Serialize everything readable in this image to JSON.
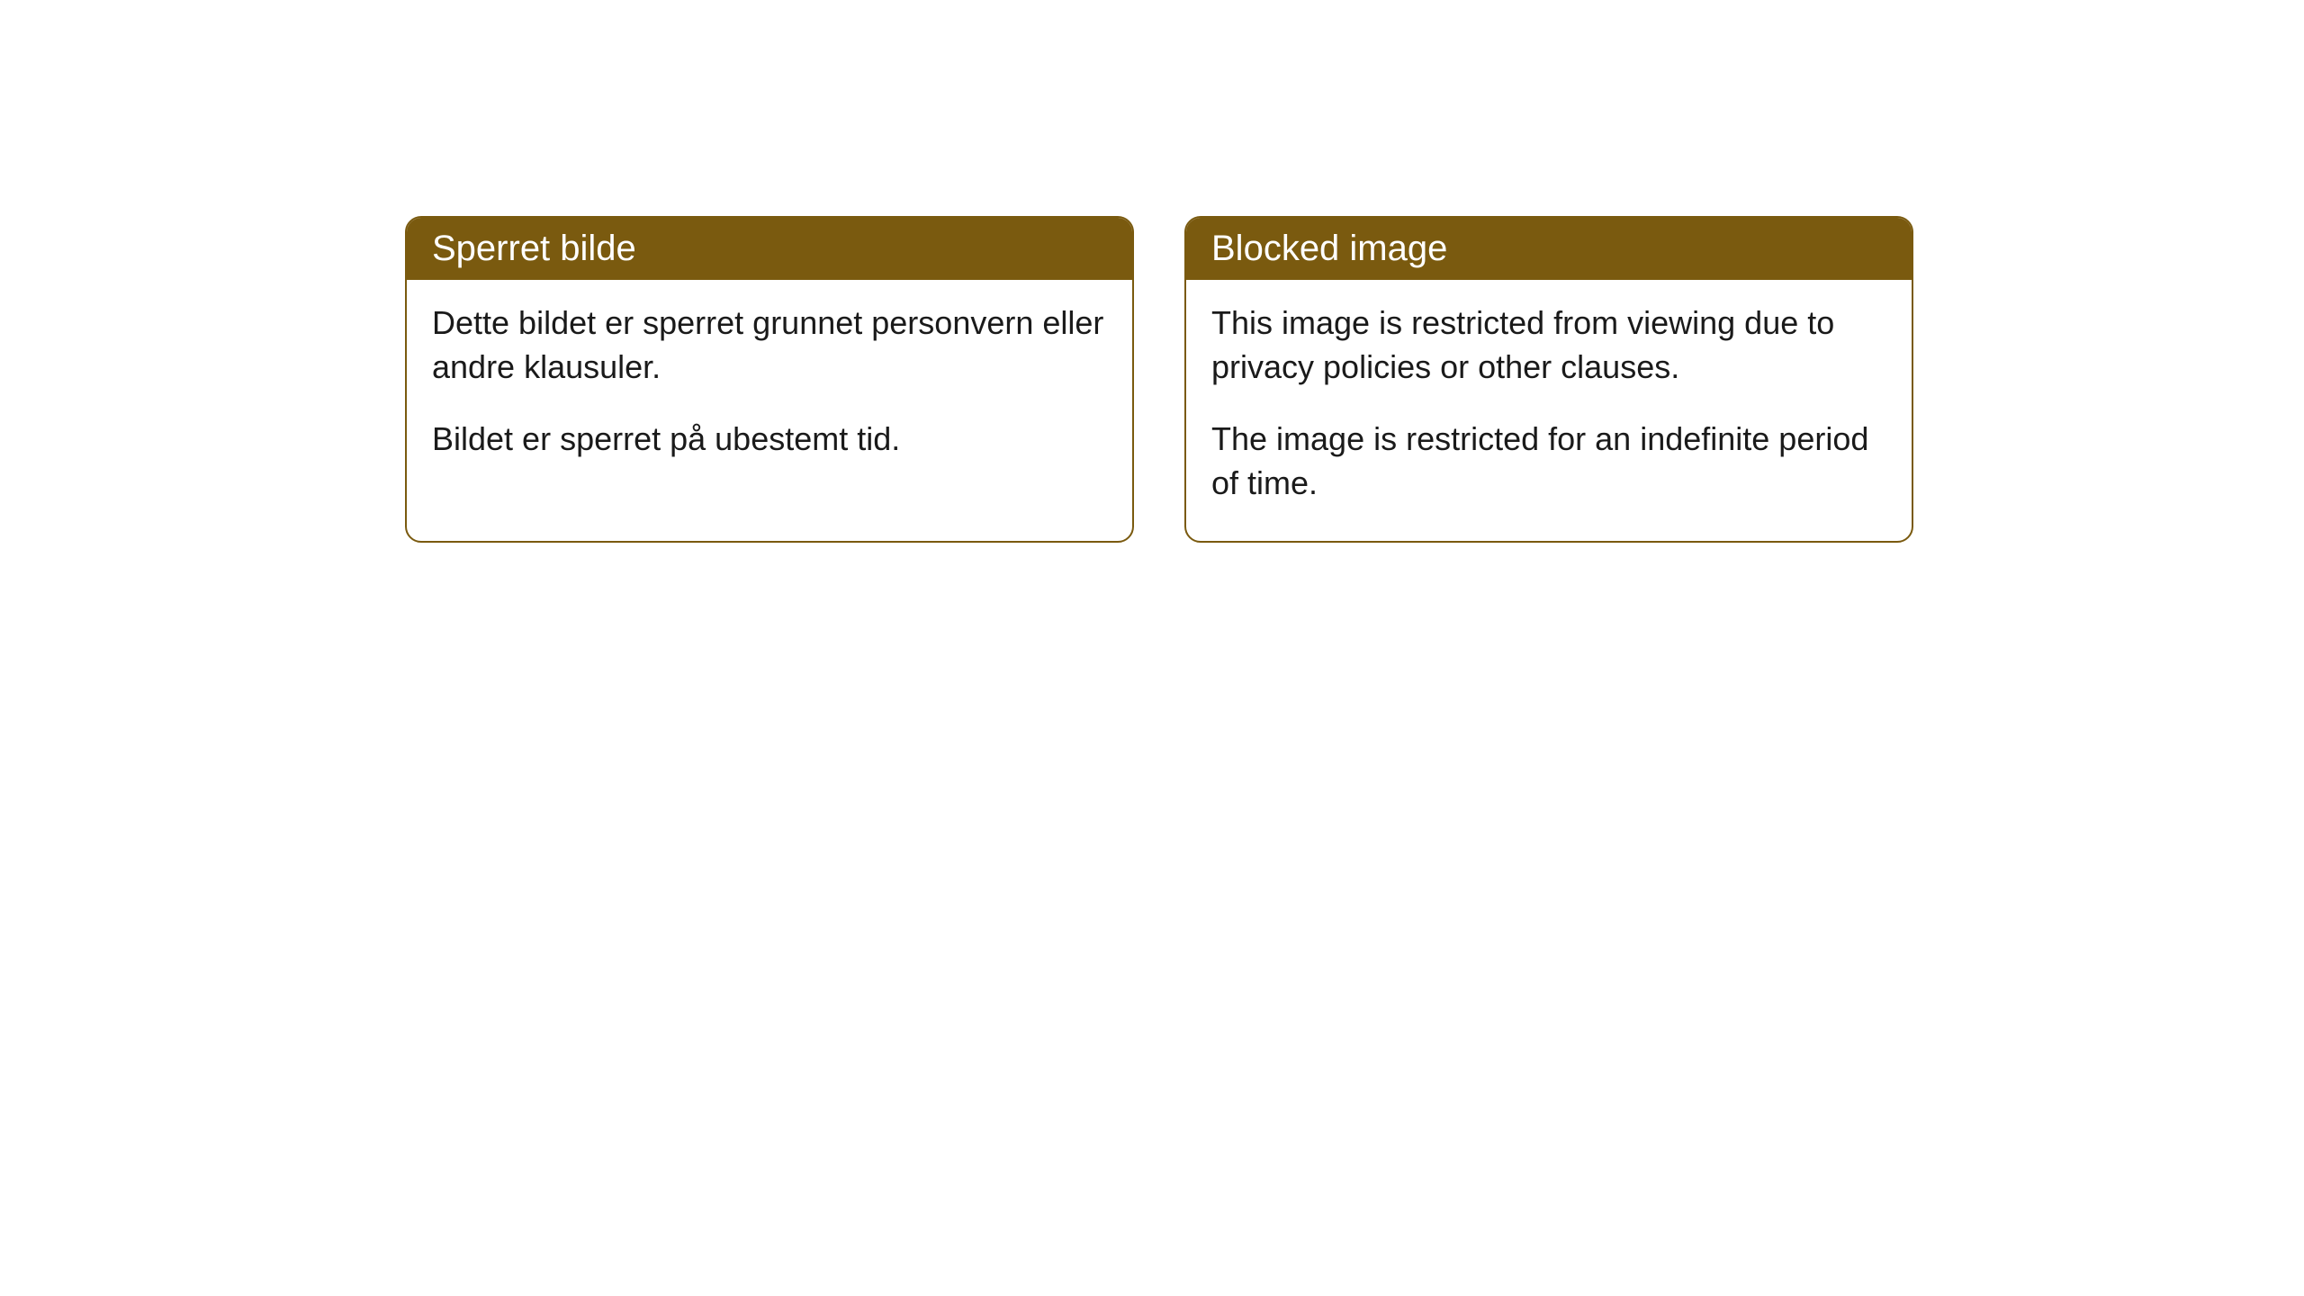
{
  "styling": {
    "header_bg_color": "#7a5a0f",
    "header_text_color": "#ffffff",
    "border_color": "#7a5a0f",
    "body_text_color": "#1a1a1a",
    "background_color": "#ffffff",
    "border_radius": 18,
    "header_fontsize": 40,
    "body_fontsize": 36
  },
  "cards": [
    {
      "title": "Sperret bilde",
      "paragraphs": [
        "Dette bildet er sperret grunnet personvern eller andre klausuler.",
        "Bildet er sperret på ubestemt tid."
      ]
    },
    {
      "title": "Blocked image",
      "paragraphs": [
        "This image is restricted from viewing due to privacy policies or other clauses.",
        "The image is restricted for an indefinite period of time."
      ]
    }
  ]
}
